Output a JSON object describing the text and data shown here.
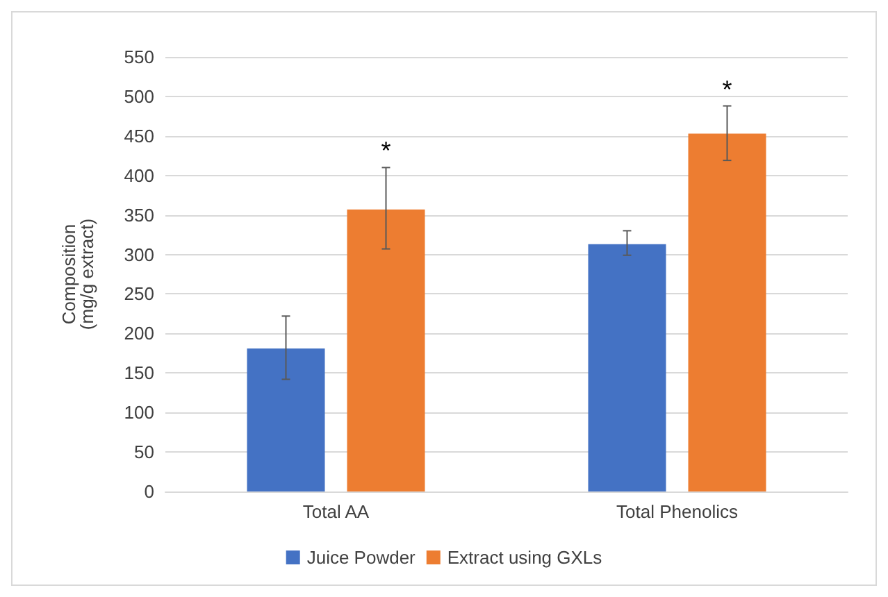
{
  "chart_data": {
    "type": "bar",
    "ylabel": "Composition\n(mg/g extract)",
    "categories": [
      "Total AA",
      "Total Phenolics"
    ],
    "series": [
      {
        "name": "Juice Powder",
        "color": "#4472c4",
        "values": [
          181,
          313
        ],
        "errors": [
          [
            142,
            222
          ],
          [
            299,
            330
          ]
        ]
      },
      {
        "name": "Extract using GXLs",
        "color": "#ed7d31",
        "values": [
          357,
          453
        ],
        "errors": [
          [
            307,
            410
          ],
          [
            419,
            488
          ]
        ]
      }
    ],
    "ylim": [
      0,
      550
    ],
    "yticks": [
      0,
      50,
      100,
      150,
      200,
      250,
      300,
      350,
      400,
      450,
      500,
      550
    ],
    "grid": "y",
    "legend": "bottom",
    "annotations": [
      "*",
      "*"
    ]
  }
}
